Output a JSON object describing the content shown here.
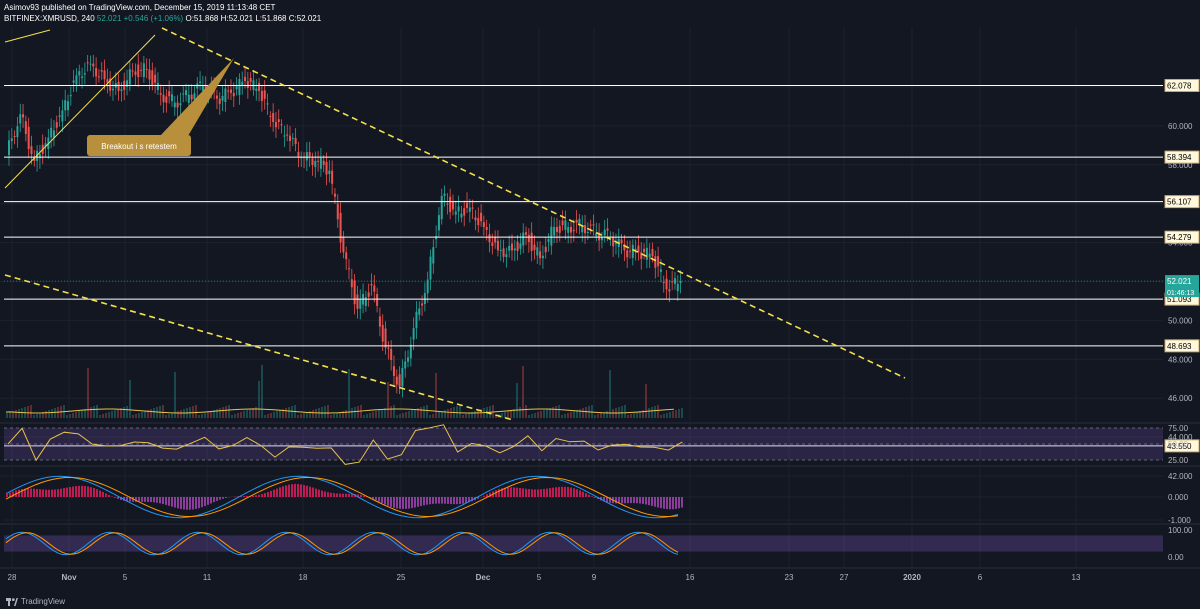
{
  "header": {
    "line1": "Asimov93 published on TradingView.com, December 15, 2019 11:13:48 CET",
    "symbol": "BITFINEX:XMRUSD, 240",
    "price": "52.021",
    "change": "+0.546 (+1.06%)",
    "open": "O:51.868",
    "high": "H:52.021",
    "low": "L:51.868",
    "close": "C:52.021"
  },
  "footer": {
    "brand": "TradingView"
  },
  "chart_data": {
    "type": "candlestick",
    "price_axis": [
      62.0,
      60.0,
      58.0,
      56.0,
      54.0,
      52.0,
      50.0,
      48.0,
      46.0,
      44.0,
      42.0
    ],
    "price_labels": [
      "62.000",
      "60.000",
      "58.000",
      "56.000",
      "54.000",
      "52.000",
      "50.000",
      "48.000",
      "46.000",
      "44.000",
      "42.000"
    ],
    "horizontal_levels": [
      {
        "value": 62.078,
        "label": "62.078"
      },
      {
        "value": 58.394,
        "label": "58.394"
      },
      {
        "value": 56.107,
        "label": "56.107"
      },
      {
        "value": 54.279,
        "label": "54.279"
      },
      {
        "value": 51.093,
        "label": "51.093"
      },
      {
        "value": 48.693,
        "label": "48.693"
      },
      {
        "value": 43.55,
        "label": "43.550"
      }
    ],
    "last_price": {
      "value": 52.021,
      "label": "52.021",
      "countdown": "01:46:13"
    },
    "annotation": "Breakout i s retestem",
    "x_labels": [
      "28",
      "Nov",
      "5",
      "11",
      "18",
      "25",
      "Dec",
      "5",
      "9",
      "16",
      "23",
      "27",
      "2020",
      "6",
      "13"
    ],
    "x_label_bold": [
      "Nov",
      "Dec",
      "2020"
    ],
    "price_path": [
      [
        "Oct 28",
        58.5
      ],
      [
        "Oct 29",
        60.6
      ],
      [
        "Oct 30",
        58.2
      ],
      [
        "Oct 31",
        59.4
      ],
      [
        "Nov 1",
        60.8
      ],
      [
        "Nov 2",
        62.6
      ],
      [
        "Nov 3",
        63.2
      ],
      [
        "Nov 4",
        62.4
      ],
      [
        "Nov 5",
        61.8
      ],
      [
        "Nov 6",
        62.8
      ],
      [
        "Nov 7",
        62.9
      ],
      [
        "Nov 8",
        61.6
      ],
      [
        "Nov 9",
        61.2
      ],
      [
        "Nov 10",
        61.6
      ],
      [
        "Nov 11",
        62.1
      ],
      [
        "Nov 12",
        61.4
      ],
      [
        "Nov 13",
        61.7
      ],
      [
        "Nov 14",
        62.3
      ],
      [
        "Nov 15",
        61.8
      ],
      [
        "Nov 16",
        60.2
      ],
      [
        "Nov 17",
        59.5
      ],
      [
        "Nov 18",
        58.4
      ],
      [
        "Nov 19",
        58.2
      ],
      [
        "Nov 20",
        57.7
      ],
      [
        "Nov 21",
        53.5
      ],
      [
        "Nov 22",
        50.6
      ],
      [
        "Nov 23",
        51.8
      ],
      [
        "Nov 24",
        48.6
      ],
      [
        "Nov 25",
        46.6
      ],
      [
        "Nov 26",
        49.6
      ],
      [
        "Nov 27",
        52.1
      ],
      [
        "Nov 28",
        56.4
      ],
      [
        "Nov 29",
        55.6
      ],
      [
        "Nov 30",
        55.8
      ],
      [
        "Dec 1",
        54.8
      ],
      [
        "Dec 2",
        53.6
      ],
      [
        "Dec 3",
        53.6
      ],
      [
        "Dec 4",
        54.4
      ],
      [
        "Dec 5",
        53.2
      ],
      [
        "Dec 6",
        54.8
      ],
      [
        "Dec 7",
        54.8
      ],
      [
        "Dec 8",
        54.9
      ],
      [
        "Dec 9",
        54.5
      ],
      [
        "Dec 10",
        54.3
      ],
      [
        "Dec 11",
        53.6
      ],
      [
        "Dec 12",
        53.5
      ],
      [
        "Dec 13",
        53.3
      ],
      [
        "Dec 14",
        51.6
      ],
      [
        "Dec 15",
        52.02
      ]
    ],
    "indicators": {
      "rsi_levels": [
        {
          "value": 75,
          "label": "75.00"
        },
        {
          "value": 50,
          "label": "50.00"
        },
        {
          "value": 25,
          "label": "25.00"
        }
      ],
      "macd_levels": [
        {
          "value": 0,
          "label": "0.000"
        },
        {
          "value": -1,
          "label": "-1.000"
        }
      ],
      "stoch_levels": [
        {
          "value": 100,
          "label": "100.00"
        },
        {
          "value": 0,
          "label": "0.00"
        }
      ]
    },
    "colors": {
      "background": "#131722",
      "up": "#26a69a",
      "down": "#ef5350",
      "trendline": "#f5e04a",
      "level_line": "#ffffff",
      "last_price_bg": "#26a69a",
      "rsi_band": "#7e57c2",
      "rsi_line": "#e6c34a",
      "annotation_bg": "#b8903c"
    }
  }
}
